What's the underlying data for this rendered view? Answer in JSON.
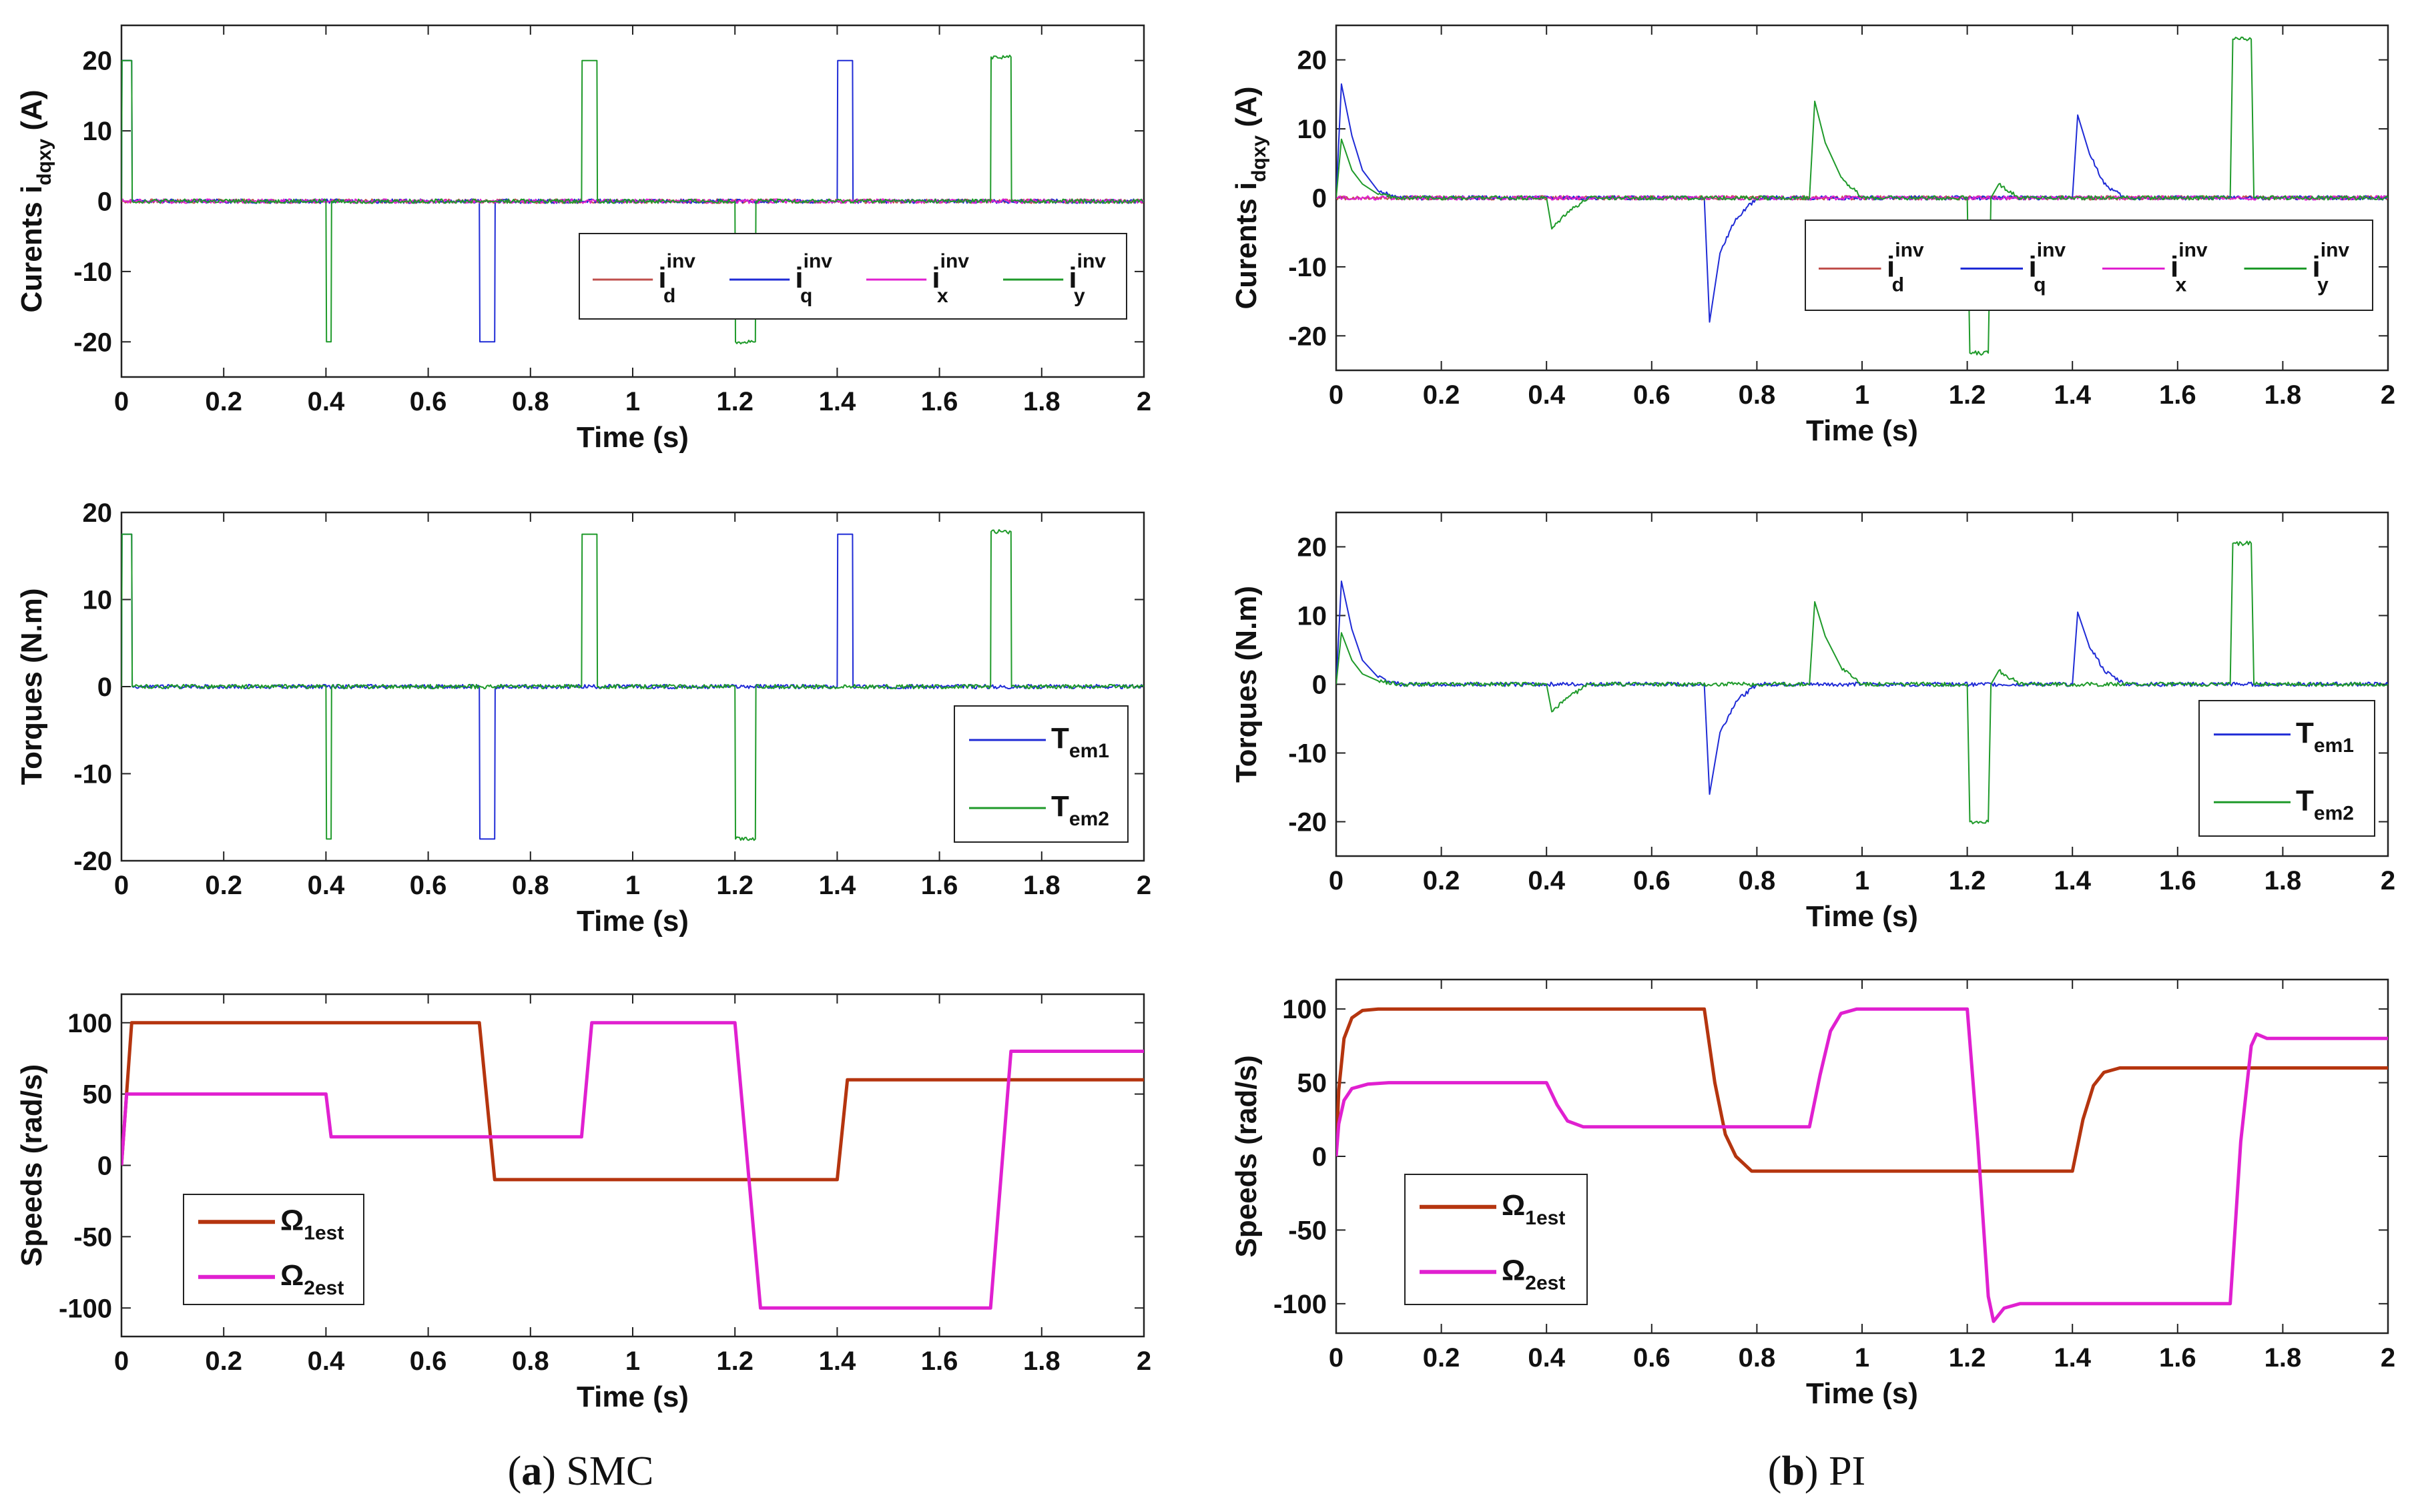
{
  "chart_data": [
    {
      "id": "a-currents",
      "type": "line",
      "xlabel": "Time (s)",
      "ylabel": "Curents i",
      "ylabel_sub": "dqxy",
      "ylabel_unit": " (A)",
      "xlim": [
        0,
        2
      ],
      "ylim": [
        -25,
        25
      ],
      "xticks": [
        0,
        0.2,
        0.4,
        0.6,
        0.8,
        1,
        1.2,
        1.4,
        1.6,
        1.8,
        2
      ],
      "yticks": [
        -20,
        -10,
        0,
        10,
        20
      ],
      "legend_position": "right",
      "legend_layout": "row",
      "series": [
        {
          "name": "i",
          "name_sup": "inv",
          "name_sub": "d",
          "color": "#c0504d",
          "width": 2,
          "x": [
            0,
            2
          ],
          "y": [
            0,
            0
          ]
        },
        {
          "name": "i",
          "name_sup": "inv",
          "name_sub": "q",
          "color": "#1f2bd6",
          "width": 2,
          "x": [
            0,
            0.001,
            0.02,
            0.021,
            0.7,
            0.701,
            0.73,
            0.731,
            1.4,
            1.401,
            1.43,
            1.431,
            2
          ],
          "y": [
            0,
            20,
            20,
            0,
            0,
            -20,
            -20,
            0,
            0,
            20,
            20,
            0,
            0
          ]
        },
        {
          "name": "i",
          "name_sup": "inv",
          "name_sub": "x",
          "color": "#e020d0",
          "width": 2,
          "x": [
            0,
            2
          ],
          "y": [
            0,
            0
          ]
        },
        {
          "name": "i",
          "name_sup": "inv",
          "name_sub": "y",
          "color": "#1f9a2a",
          "width": 2,
          "x": [
            0,
            0.001,
            0.02,
            0.021,
            0.4,
            0.401,
            0.41,
            0.411,
            0.9,
            0.901,
            0.93,
            0.931,
            1.2,
            1.201,
            1.24,
            1.241,
            1.7,
            1.701,
            1.74,
            1.741,
            2
          ],
          "y": [
            0,
            20,
            20,
            0,
            0,
            -20,
            -20,
            0,
            0,
            20,
            20,
            0,
            0,
            -20,
            -20,
            0,
            0,
            20.5,
            20.5,
            0,
            0
          ]
        }
      ]
    },
    {
      "id": "a-torques",
      "type": "line",
      "xlabel": "Time (s)",
      "ylabel": "Torques (N.m)",
      "xlim": [
        0,
        2
      ],
      "ylim": [
        -20,
        20
      ],
      "xticks": [
        0,
        0.2,
        0.4,
        0.6,
        0.8,
        1,
        1.2,
        1.4,
        1.6,
        1.8,
        2
      ],
      "yticks": [
        -20,
        -10,
        0,
        10,
        20
      ],
      "legend_position": "bottom-right",
      "legend_layout": "column",
      "series": [
        {
          "name": "T",
          "name_sub": "em1",
          "color": "#1f2bd6",
          "width": 2,
          "x": [
            0,
            0.001,
            0.02,
            0.021,
            0.7,
            0.701,
            0.73,
            0.731,
            1.4,
            1.401,
            1.43,
            1.431,
            2
          ],
          "y": [
            0,
            17.5,
            17.5,
            0,
            0,
            -17.5,
            -17.5,
            0,
            0,
            17.5,
            17.5,
            0,
            0
          ]
        },
        {
          "name": "T",
          "name_sub": "em2",
          "color": "#1f9a2a",
          "width": 2,
          "x": [
            0,
            0.001,
            0.02,
            0.021,
            0.4,
            0.401,
            0.41,
            0.411,
            0.9,
            0.901,
            0.93,
            0.931,
            1.2,
            1.201,
            1.24,
            1.241,
            1.7,
            1.701,
            1.74,
            1.741,
            2
          ],
          "y": [
            0,
            17.5,
            17.5,
            0,
            0,
            -17.5,
            -17.5,
            0,
            0,
            17.5,
            17.5,
            0,
            0,
            -17.5,
            -17.5,
            0,
            0,
            17.8,
            17.8,
            0,
            0
          ]
        }
      ]
    },
    {
      "id": "a-speeds",
      "type": "line",
      "xlabel": "Time (s)",
      "ylabel": "Speeds  (rad/s)",
      "xlim": [
        0,
        2
      ],
      "ylim": [
        -120,
        120
      ],
      "xticks": [
        0,
        0.2,
        0.4,
        0.6,
        0.8,
        1,
        1.2,
        1.4,
        1.6,
        1.8,
        2
      ],
      "yticks": [
        -100,
        -50,
        0,
        50,
        100
      ],
      "legend_position": "bottom-left",
      "legend_layout": "column",
      "series": [
        {
          "name": "Ω",
          "name_sub": "1est",
          "color": "#b5350f",
          "width": 5,
          "x": [
            0,
            0.02,
            0.7,
            0.73,
            1.4,
            1.42,
            2
          ],
          "y": [
            0,
            100,
            100,
            -10,
            -10,
            60,
            60
          ]
        },
        {
          "name": "Ω",
          "name_sub": "2est",
          "color": "#e020d0",
          "width": 5,
          "x": [
            0,
            0.01,
            0.4,
            0.41,
            0.9,
            0.92,
            1.2,
            1.25,
            1.7,
            1.74,
            2
          ],
          "y": [
            0,
            50,
            50,
            20,
            20,
            100,
            100,
            -100,
            -100,
            80,
            80
          ]
        }
      ]
    },
    {
      "id": "b-currents",
      "type": "line",
      "xlabel": "Time (s)",
      "ylabel": "Curents i",
      "ylabel_sub": "dqxy",
      "ylabel_unit": " (A)",
      "xlim": [
        0,
        2
      ],
      "ylim": [
        -25,
        25
      ],
      "xticks": [
        0,
        0.2,
        0.4,
        0.6,
        0.8,
        1,
        1.2,
        1.4,
        1.6,
        1.8,
        2
      ],
      "yticks": [
        -20,
        -10,
        0,
        10,
        20
      ],
      "legend_position": "right",
      "legend_layout": "row",
      "series": [
        {
          "name": "i",
          "name_sup": "inv",
          "name_sub": "d",
          "color": "#c0504d",
          "width": 2,
          "x": [
            0,
            2
          ],
          "y": [
            0,
            0
          ]
        },
        {
          "name": "i",
          "name_sup": "inv",
          "name_sub": "q",
          "color": "#1f2bd6",
          "width": 2,
          "x": [
            0,
            0.01,
            0.03,
            0.05,
            0.08,
            0.12,
            0.7,
            0.71,
            0.73,
            0.76,
            0.8,
            1.4,
            1.41,
            1.43,
            1.46,
            1.5,
            2
          ],
          "y": [
            0,
            16.5,
            9,
            4,
            1,
            0,
            0,
            -18,
            -8,
            -3,
            0,
            0,
            12,
            7,
            2,
            0,
            0
          ]
        },
        {
          "name": "i",
          "name_sup": "inv",
          "name_sub": "x",
          "color": "#e020d0",
          "width": 2,
          "x": [
            0,
            2
          ],
          "y": [
            0,
            0
          ]
        },
        {
          "name": "i",
          "name_sup": "inv",
          "name_sub": "y",
          "color": "#1f9a2a",
          "width": 2,
          "x": [
            0,
            0.01,
            0.03,
            0.05,
            0.08,
            0.12,
            0.4,
            0.41,
            0.44,
            0.48,
            0.9,
            0.91,
            0.93,
            0.96,
            1.0,
            1.2,
            1.205,
            1.24,
            1.245,
            1.26,
            1.3,
            1.7,
            1.705,
            1.74,
            1.745,
            1.8,
            2
          ],
          "y": [
            0,
            8.5,
            4,
            2,
            0.5,
            0,
            0,
            -4.5,
            -2,
            0,
            0,
            14,
            8,
            3,
            0,
            0,
            -22.5,
            -22.5,
            0,
            2,
            0,
            0,
            23,
            23,
            0,
            0,
            0
          ]
        }
      ]
    },
    {
      "id": "b-torques",
      "type": "line",
      "xlabel": "Time (s)",
      "ylabel": "Torques (N.m)",
      "xlim": [
        0,
        2
      ],
      "ylim": [
        -25,
        25
      ],
      "xticks": [
        0,
        0.2,
        0.4,
        0.6,
        0.8,
        1,
        1.2,
        1.4,
        1.6,
        1.8,
        2
      ],
      "yticks": [
        -20,
        -10,
        0,
        10,
        20
      ],
      "legend_position": "bottom-right",
      "legend_layout": "column",
      "series": [
        {
          "name": "T",
          "name_sub": "em1",
          "color": "#1f2bd6",
          "width": 2,
          "x": [
            0,
            0.01,
            0.03,
            0.05,
            0.08,
            0.12,
            0.7,
            0.71,
            0.73,
            0.76,
            0.8,
            1.4,
            1.41,
            1.43,
            1.46,
            1.5,
            2
          ],
          "y": [
            0,
            15,
            8,
            3.5,
            1,
            0,
            0,
            -16,
            -7,
            -2.5,
            0,
            0,
            10.5,
            6,
            2,
            0,
            0
          ]
        },
        {
          "name": "T",
          "name_sub": "em2",
          "color": "#1f9a2a",
          "width": 2,
          "x": [
            0,
            0.01,
            0.03,
            0.05,
            0.08,
            0.12,
            0.4,
            0.41,
            0.44,
            0.48,
            0.9,
            0.91,
            0.93,
            0.96,
            1.0,
            1.2,
            1.205,
            1.24,
            1.245,
            1.26,
            1.3,
            1.7,
            1.705,
            1.74,
            1.745,
            1.8,
            2
          ],
          "y": [
            0,
            7.5,
            3.5,
            1.5,
            0.5,
            0,
            0,
            -4,
            -2,
            0,
            0,
            12,
            7,
            2.5,
            0,
            0,
            -20,
            -20,
            0,
            2,
            0,
            0,
            20.5,
            20.5,
            0,
            0,
            0
          ]
        }
      ]
    },
    {
      "id": "b-speeds",
      "type": "line",
      "xlabel": "Time (s)",
      "ylabel": "Speeds  (rad/s)",
      "xlim": [
        0,
        2
      ],
      "ylim": [
        -120,
        120
      ],
      "xticks": [
        0,
        0.2,
        0.4,
        0.6,
        0.8,
        1,
        1.2,
        1.4,
        1.6,
        1.8,
        2
      ],
      "yticks": [
        -100,
        -50,
        0,
        50,
        100
      ],
      "legend_position": "bottom-left",
      "legend_layout": "column",
      "series": [
        {
          "name": "Ω",
          "name_sub": "1est",
          "color": "#b5350f",
          "width": 5,
          "x": [
            0,
            0.005,
            0.015,
            0.03,
            0.05,
            0.08,
            0.7,
            0.72,
            0.74,
            0.76,
            0.79,
            1.4,
            1.42,
            1.44,
            1.46,
            1.49,
            2
          ],
          "y": [
            0,
            45,
            80,
            94,
            99,
            100,
            100,
            50,
            15,
            0,
            -10,
            -10,
            25,
            48,
            57,
            60,
            60
          ]
        },
        {
          "name": "Ω",
          "name_sub": "2est",
          "color": "#e020d0",
          "width": 5,
          "x": [
            0,
            0.005,
            0.015,
            0.03,
            0.06,
            0.1,
            0.4,
            0.42,
            0.44,
            0.47,
            0.9,
            0.92,
            0.94,
            0.96,
            0.99,
            1.2,
            1.22,
            1.24,
            1.25,
            1.27,
            1.3,
            1.7,
            1.72,
            1.74,
            1.75,
            1.77,
            2
          ],
          "y": [
            0,
            22,
            38,
            46,
            49,
            50,
            50,
            35,
            24,
            20,
            20,
            55,
            85,
            97,
            100,
            100,
            10,
            -95,
            -112,
            -103,
            -100,
            -100,
            10,
            75,
            83,
            80,
            80
          ]
        }
      ]
    }
  ],
  "captions": {
    "a_label": "a",
    "a_text": " SMC",
    "b_label": "b",
    "b_text": " PI"
  }
}
